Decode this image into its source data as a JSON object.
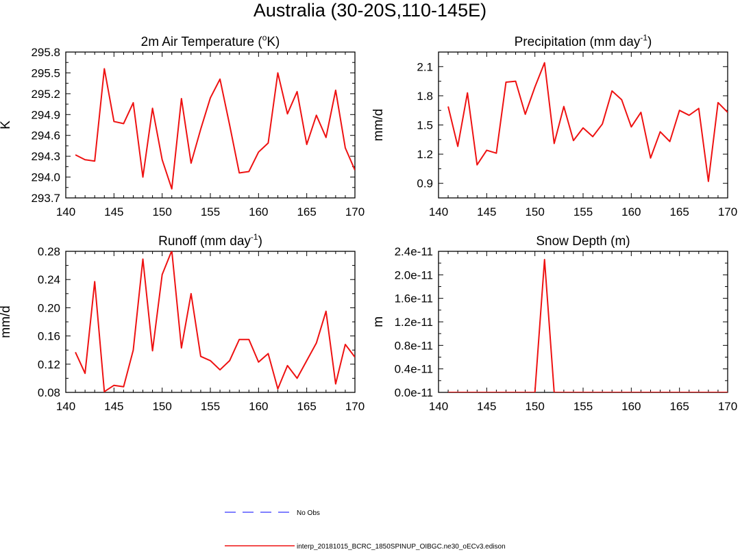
{
  "title": "Australia (30-20S,110-145E)",
  "colors": {
    "model": "#ee1111",
    "obs": "#5555ff",
    "axis": "#000000"
  },
  "legend": {
    "obs_label": "No Obs",
    "model_label": "interp_20181015_BCRC_1850SPINUP_OIBGC.ne30_oECv3.edison"
  },
  "chart_data": [
    {
      "id": "temp",
      "type": "line",
      "title_parts": [
        "2m Air Temperature (",
        "o",
        "K)"
      ],
      "ylabel": "K",
      "xlabel": "",
      "xlim": [
        140,
        170
      ],
      "ylim": [
        293.7,
        295.8
      ],
      "xticks": [
        140,
        145,
        150,
        155,
        160,
        165,
        170
      ],
      "yticks": [
        293.7,
        294.0,
        294.3,
        294.6,
        294.9,
        295.2,
        295.5,
        295.8
      ],
      "ydecimals": 1,
      "x": [
        141,
        142,
        143,
        144,
        145,
        146,
        147,
        148,
        149,
        150,
        151,
        152,
        153,
        154,
        155,
        156,
        157,
        158,
        159,
        160,
        161,
        162,
        163,
        164,
        165,
        166,
        167,
        168,
        169,
        170
      ],
      "series": [
        {
          "name": "interp_20181015_BCRC_1850SPINUP_OIBGC.ne30_oECv3.edison",
          "values": [
            294.32,
            294.25,
            294.23,
            295.56,
            294.8,
            294.77,
            295.07,
            294.0,
            294.99,
            294.25,
            293.83,
            295.13,
            294.2,
            294.69,
            295.14,
            295.41,
            294.75,
            294.06,
            294.08,
            294.36,
            294.49,
            295.5,
            294.91,
            295.23,
            294.47,
            294.89,
            294.57,
            295.25,
            294.42,
            294.1
          ]
        }
      ]
    },
    {
      "id": "precip",
      "type": "line",
      "title_parts": [
        "Precipitation (mm day",
        "-1",
        ")"
      ],
      "ylabel": "mm/d",
      "xlabel": "",
      "xlim": [
        140,
        170
      ],
      "ylim": [
        0.75,
        2.25
      ],
      "xticks": [
        140,
        145,
        150,
        155,
        160,
        165,
        170
      ],
      "yticks": [
        0.9,
        1.2,
        1.5,
        1.8,
        2.1
      ],
      "ydecimals": 1,
      "x": [
        141,
        142,
        143,
        144,
        145,
        146,
        147,
        148,
        149,
        150,
        151,
        152,
        153,
        154,
        155,
        156,
        157,
        158,
        159,
        160,
        161,
        162,
        163,
        164,
        165,
        166,
        167,
        168,
        169,
        170
      ],
      "series": [
        {
          "name": "interp_20181015_BCRC_1850SPINUP_OIBGC.ne30_oECv3.edison",
          "values": [
            1.69,
            1.28,
            1.83,
            1.09,
            1.24,
            1.21,
            1.94,
            1.95,
            1.61,
            1.89,
            2.14,
            1.31,
            1.69,
            1.34,
            1.47,
            1.38,
            1.51,
            1.85,
            1.76,
            1.48,
            1.63,
            1.16,
            1.43,
            1.33,
            1.65,
            1.6,
            1.67,
            0.92,
            1.73,
            1.63
          ]
        }
      ]
    },
    {
      "id": "runoff",
      "type": "line",
      "title_parts": [
        "Runoff (mm day",
        "-1",
        ")"
      ],
      "ylabel": "mm/d",
      "xlabel": "",
      "xlim": [
        140,
        170
      ],
      "ylim": [
        0.08,
        0.28
      ],
      "xticks": [
        140,
        145,
        150,
        155,
        160,
        165,
        170
      ],
      "yticks": [
        0.08,
        0.12,
        0.16,
        0.2,
        0.24,
        0.28
      ],
      "ydecimals": 2,
      "x": [
        141,
        142,
        143,
        144,
        145,
        146,
        147,
        148,
        149,
        150,
        151,
        152,
        153,
        154,
        155,
        156,
        157,
        158,
        159,
        160,
        161,
        162,
        163,
        164,
        165,
        166,
        167,
        168,
        169,
        170
      ],
      "series": [
        {
          "name": "interp_20181015_BCRC_1850SPINUP_OIBGC.ne30_oECv3.edison",
          "values": [
            0.137,
            0.107,
            0.237,
            0.081,
            0.09,
            0.088,
            0.14,
            0.269,
            0.139,
            0.247,
            0.281,
            0.143,
            0.22,
            0.131,
            0.125,
            0.112,
            0.125,
            0.155,
            0.155,
            0.123,
            0.135,
            0.085,
            0.118,
            0.1,
            0.125,
            0.15,
            0.195,
            0.092,
            0.148,
            0.13
          ]
        }
      ]
    },
    {
      "id": "snow",
      "type": "line",
      "title_parts": [
        "Snow Depth (m)"
      ],
      "ylabel": "m",
      "xlabel": "",
      "xlim": [
        140,
        170
      ],
      "ylim": [
        0,
        2.4e-11
      ],
      "xticks": [
        140,
        145,
        150,
        155,
        160,
        165,
        170
      ],
      "yticks": [
        0,
        4e-12,
        8e-12,
        1.2e-11,
        1.6e-11,
        2e-11,
        2.4e-11
      ],
      "ytick_labels": [
        "0.0e-11",
        "0.4e-11",
        "0.8e-11",
        "1.2e-11",
        "1.6e-11",
        "2.0e-11",
        "2.4e-11"
      ],
      "x": [
        141,
        142,
        143,
        144,
        145,
        146,
        147,
        148,
        149,
        150,
        151,
        152,
        153,
        154,
        155,
        156,
        157,
        158,
        159,
        160,
        161,
        162,
        163,
        164,
        165,
        166,
        167,
        168,
        169,
        170
      ],
      "series": [
        {
          "name": "interp_20181015_BCRC_1850SPINUP_OIBGC.ne30_oECv3.edison",
          "values": [
            0,
            0,
            0,
            0,
            0,
            0,
            0,
            0,
            0,
            0,
            2.26e-11,
            0,
            0,
            0,
            0,
            0,
            0,
            0,
            0,
            0,
            0,
            0,
            0,
            0,
            0,
            0,
            0,
            0,
            0,
            0
          ]
        }
      ]
    }
  ]
}
